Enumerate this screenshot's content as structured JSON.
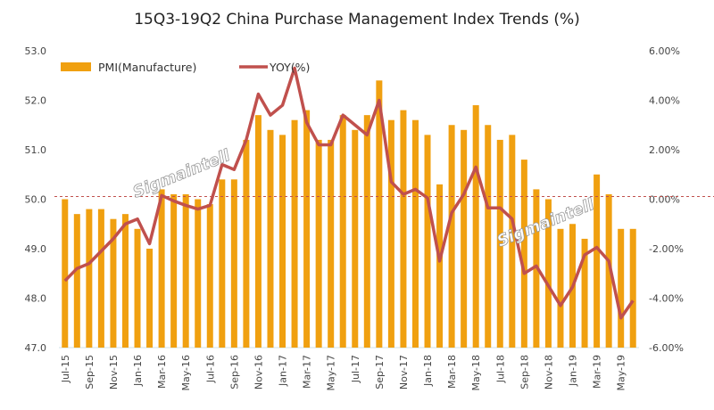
{
  "chart_data": {
    "type": "bar+line",
    "title": "15Q3-19Q2 China Purchase Management Index Trends (%)",
    "categories": [
      "Jul-15",
      "Aug-15",
      "Sep-15",
      "Oct-15",
      "Nov-15",
      "Dec-15",
      "Jan-16",
      "Feb-16",
      "Mar-16",
      "Apr-16",
      "May-16",
      "Jun-16",
      "Jul-16",
      "Aug-16",
      "Sep-16",
      "Oct-16",
      "Nov-16",
      "Dec-16",
      "Jan-17",
      "Feb-17",
      "Mar-17",
      "Apr-17",
      "May-17",
      "Jun-17",
      "Jul-17",
      "Aug-17",
      "Sep-17",
      "Oct-17",
      "Nov-17",
      "Dec-17",
      "Jan-18",
      "Feb-18",
      "Mar-18",
      "Apr-18",
      "May-18",
      "Jun-18",
      "Jul-18",
      "Aug-18",
      "Sep-18",
      "Oct-18",
      "Nov-18",
      "Dec-18",
      "Jan-19",
      "Feb-19",
      "Mar-19",
      "Apr-19",
      "May-19",
      "Jun-19"
    ],
    "series": [
      {
        "name": "PMI(Manufacture)",
        "type": "bar",
        "axis": "left",
        "color": "#F0A010",
        "values": [
          50.0,
          49.7,
          49.8,
          49.8,
          49.6,
          49.7,
          49.4,
          49.0,
          50.2,
          50.1,
          50.1,
          50.0,
          49.9,
          50.4,
          50.4,
          51.2,
          51.7,
          51.4,
          51.3,
          51.6,
          51.8,
          51.2,
          51.2,
          51.7,
          51.4,
          51.7,
          52.4,
          51.6,
          51.8,
          51.6,
          51.3,
          50.3,
          51.5,
          51.4,
          51.9,
          51.5,
          51.2,
          51.3,
          50.8,
          50.2,
          50.0,
          49.4,
          49.5,
          49.2,
          50.5,
          50.1,
          49.4,
          49.4
        ]
      },
      {
        "name": "YOY(%)",
        "type": "line",
        "axis": "right",
        "color": "#C0504D",
        "values": [
          -3.3,
          -2.8,
          -2.6,
          -2.1,
          -1.6,
          -1.0,
          -0.8,
          -1.8,
          0.15,
          -0.07,
          -0.25,
          -0.4,
          -0.25,
          1.4,
          1.2,
          2.4,
          4.25,
          3.4,
          3.8,
          5.3,
          3.1,
          2.2,
          2.2,
          3.4,
          3.0,
          2.6,
          4.0,
          0.7,
          0.2,
          0.4,
          0.05,
          -2.5,
          -0.55,
          0.2,
          1.3,
          -0.35,
          -0.35,
          -0.8,
          -3.0,
          -2.7,
          -3.5,
          -4.3,
          -3.55,
          -2.25,
          -1.95,
          -2.5,
          -4.8,
          -4.1
        ]
      }
    ],
    "left_axis": {
      "ylim": [
        47.0,
        53.0
      ],
      "ticks": [
        "47.0",
        "48.0",
        "49.0",
        "50.0",
        "51.0",
        "52.0",
        "53.0"
      ]
    },
    "right_axis": {
      "ylim": [
        -6,
        6
      ],
      "ticks": [
        "-6.00%",
        "-4.00%",
        "-2.00%",
        "0.00%",
        "2.00%",
        "4.00%",
        "6.00%"
      ]
    },
    "reference_line": {
      "value_right_axis": 0,
      "style": "dashed",
      "color": "#C0504D"
    },
    "legend": {
      "placement": "top-left"
    },
    "grid": false,
    "watermark": "Sigmaintell"
  }
}
